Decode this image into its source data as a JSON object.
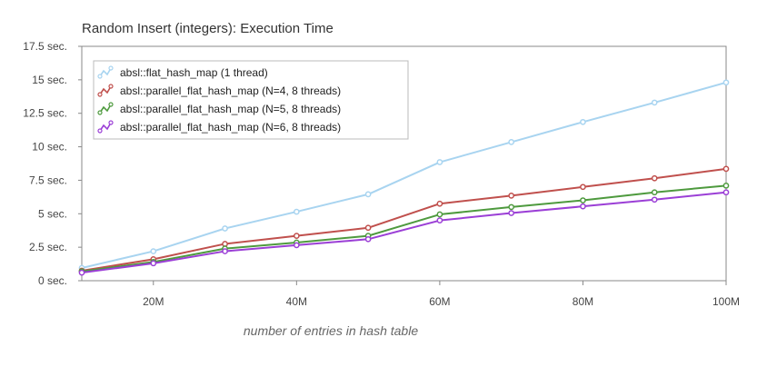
{
  "chart_data": {
    "type": "line",
    "title": "Random Insert (integers): Execution Time",
    "xlabel": "number of entries in hash table",
    "ylabel": "",
    "x": [
      10,
      20,
      30,
      40,
      50,
      60,
      70,
      80,
      90,
      100
    ],
    "xlim": [
      10,
      100
    ],
    "ylim": [
      0,
      17.5
    ],
    "x_ticks": [
      {
        "value": 20,
        "label": "20M"
      },
      {
        "value": 40,
        "label": "40M"
      },
      {
        "value": 60,
        "label": "60M"
      },
      {
        "value": 80,
        "label": "80M"
      },
      {
        "value": 100,
        "label": "100M"
      }
    ],
    "y_ticks": [
      {
        "value": 0,
        "label": "0 sec."
      },
      {
        "value": 2.5,
        "label": "2.5 sec."
      },
      {
        "value": 5,
        "label": "5 sec."
      },
      {
        "value": 7.5,
        "label": "7.5 sec."
      },
      {
        "value": 10,
        "label": "10 sec."
      },
      {
        "value": 12.5,
        "label": "12.5 sec."
      },
      {
        "value": 15,
        "label": "15 sec."
      },
      {
        "value": 17.5,
        "label": "17.5 sec."
      }
    ],
    "grid": false,
    "legend_position": "top-left",
    "series": [
      {
        "name": "absl::flat_hash_map (1 thread)",
        "color": "#a8d4f0",
        "values": [
          0.95,
          2.2,
          3.9,
          5.15,
          6.45,
          8.85,
          10.35,
          11.85,
          13.3,
          14.8
        ]
      },
      {
        "name": "absl::parallel_flat_hash_map (N=4, 8 threads)",
        "color": "#c0504d",
        "values": [
          0.75,
          1.6,
          2.75,
          3.35,
          3.95,
          5.75,
          6.35,
          7.0,
          7.65,
          8.35
        ]
      },
      {
        "name": "absl::parallel_flat_hash_map (N=5, 8 threads)",
        "color": "#4e9a3e",
        "values": [
          0.7,
          1.4,
          2.4,
          2.85,
          3.35,
          4.95,
          5.5,
          6.0,
          6.6,
          7.1
        ]
      },
      {
        "name": "absl::parallel_flat_hash_map (N=6, 8 threads)",
        "color": "#9b3fd6",
        "values": [
          0.6,
          1.3,
          2.2,
          2.65,
          3.1,
          4.5,
          5.05,
          5.55,
          6.05,
          6.6
        ]
      }
    ]
  }
}
